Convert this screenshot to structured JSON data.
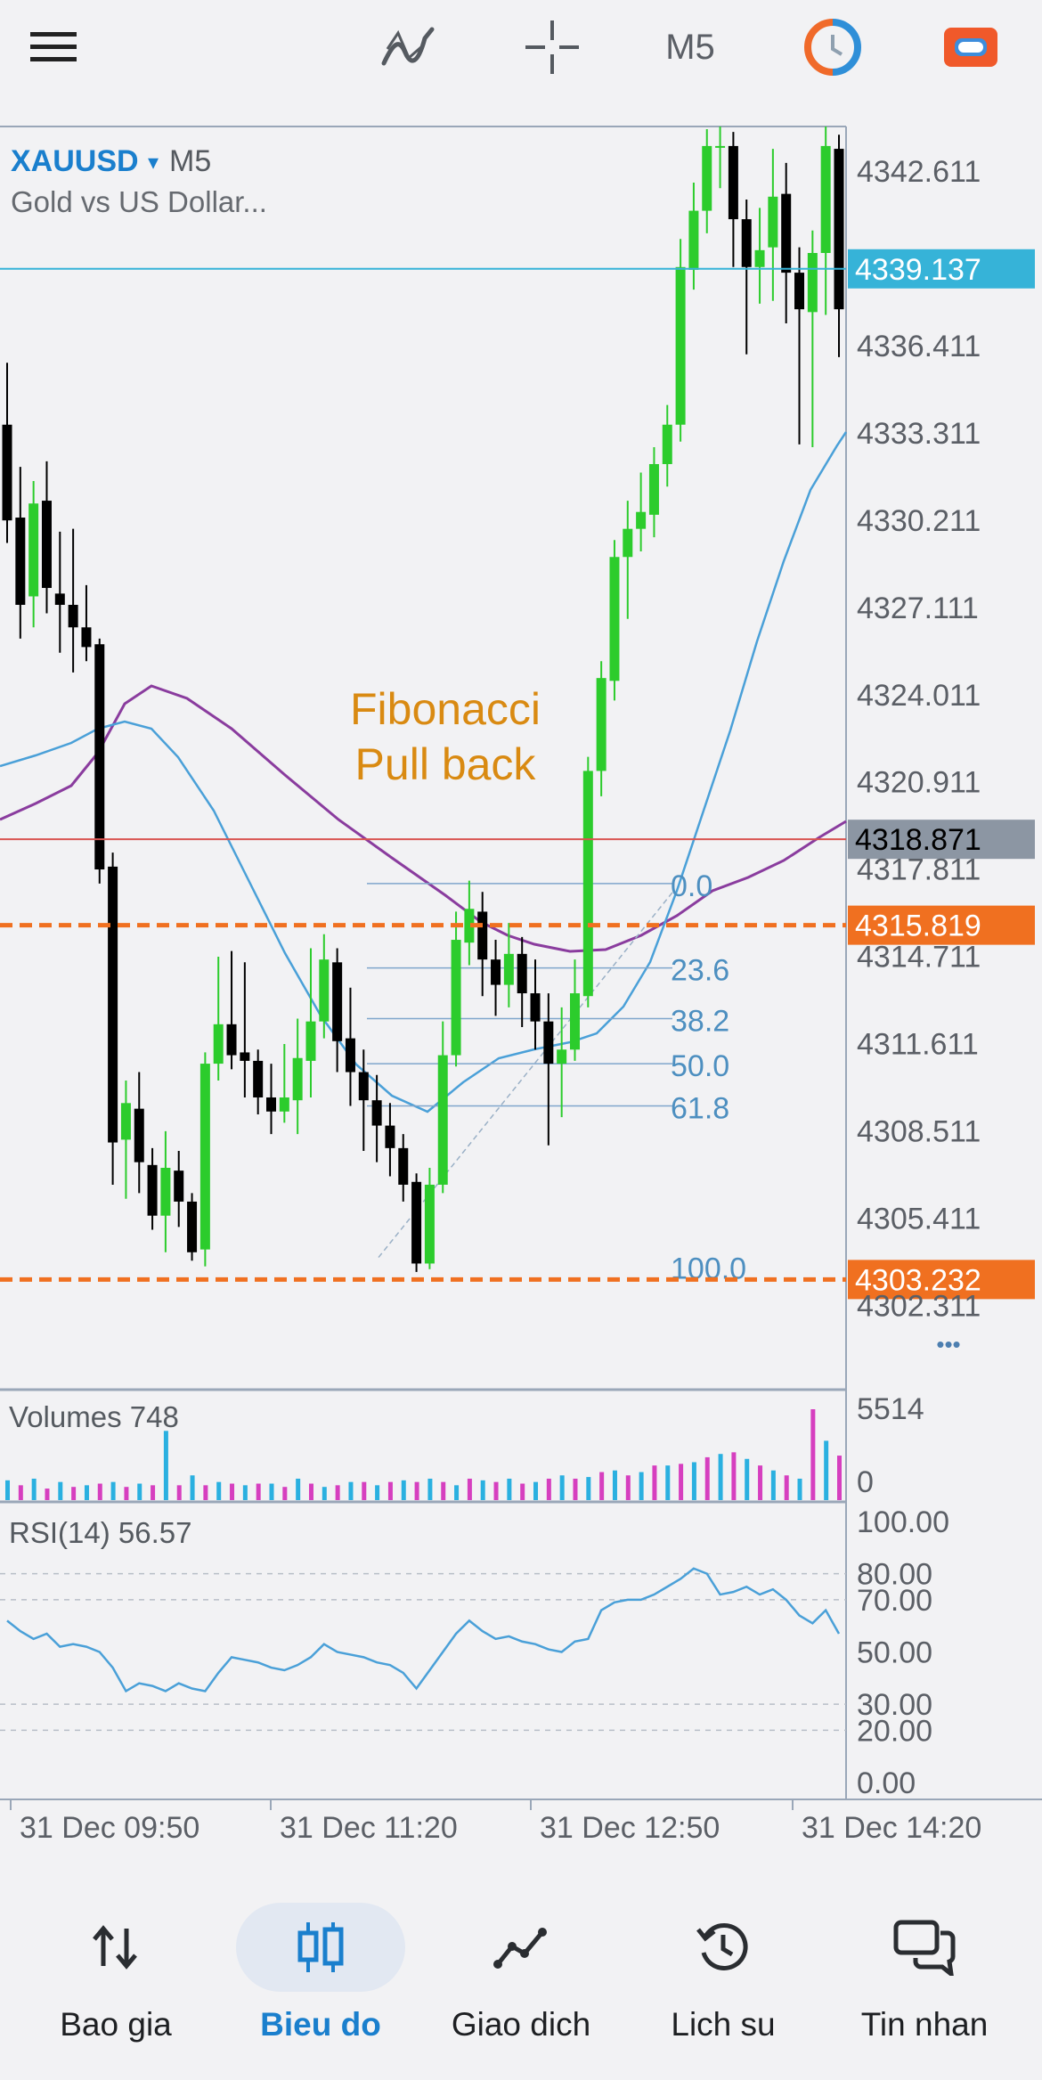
{
  "toolbar": {
    "timeframe": "M5",
    "icons": [
      "menu-icon",
      "indicators-icon",
      "crosshair-icon",
      "one-click-trading-icon",
      "settings-toggle-icon"
    ]
  },
  "chart": {
    "symbol": "XAUUSD",
    "symbol_arrow": "▾",
    "timeframe": "M5",
    "description": "Gold vs US Dollar...",
    "annotation_line1": "Fibonacci",
    "annotation_line2": "Pull back",
    "more_label": "•••",
    "price_axis": [
      "4342.611",
      "4336.411",
      "4333.311",
      "4330.211",
      "4327.111",
      "4324.011",
      "4320.911",
      "4317.811",
      "4314.711",
      "4311.611",
      "4308.511",
      "4305.411",
      "4302.311"
    ],
    "bid_line": "4339.137",
    "ask_line": "4318.871",
    "hline_top": "4315.819",
    "hline_bottom": "4303.232",
    "fib_levels": [
      {
        "label": "0.0",
        "price": 4317.3
      },
      {
        "label": "23.6",
        "price": 4314.3
      },
      {
        "label": "38.2",
        "price": 4312.5
      },
      {
        "label": "50.0",
        "price": 4310.9
      },
      {
        "label": "61.8",
        "price": 4309.4
      },
      {
        "label": "100.0",
        "price": 4303.7
      }
    ],
    "volumes_label": "Volumes 748",
    "volume_axis": [
      "5514",
      "0"
    ],
    "rsi_label": "RSI(14) 56.57",
    "rsi_axis": [
      "100.00",
      "80.00",
      "70.00",
      "50.00",
      "30.00",
      "20.00",
      "0.00"
    ],
    "time_axis": [
      "31 Dec 09:50",
      "31 Dec 11:20",
      "31 Dec 12:50",
      "31 Dec 14:20"
    ],
    "colors": {
      "bull": "#2ccc2c",
      "bear": "#000000",
      "accent": "#1a7fcd",
      "orange": "#f07020",
      "fib": "#4d8fc0",
      "ma_slow": "#8a3c9e",
      "ma_fast": "#4aa0d8",
      "annotation": "#d98a12"
    }
  },
  "nav": {
    "items": [
      {
        "label": "Bao gia",
        "icon": "quotes-icon"
      },
      {
        "label": "Bieu do",
        "icon": "chart-icon"
      },
      {
        "label": "Giao dich",
        "icon": "trade-icon"
      },
      {
        "label": "Lich su",
        "icon": "history-icon"
      },
      {
        "label": "Tin nhan",
        "icon": "messages-icon"
      }
    ]
  }
}
